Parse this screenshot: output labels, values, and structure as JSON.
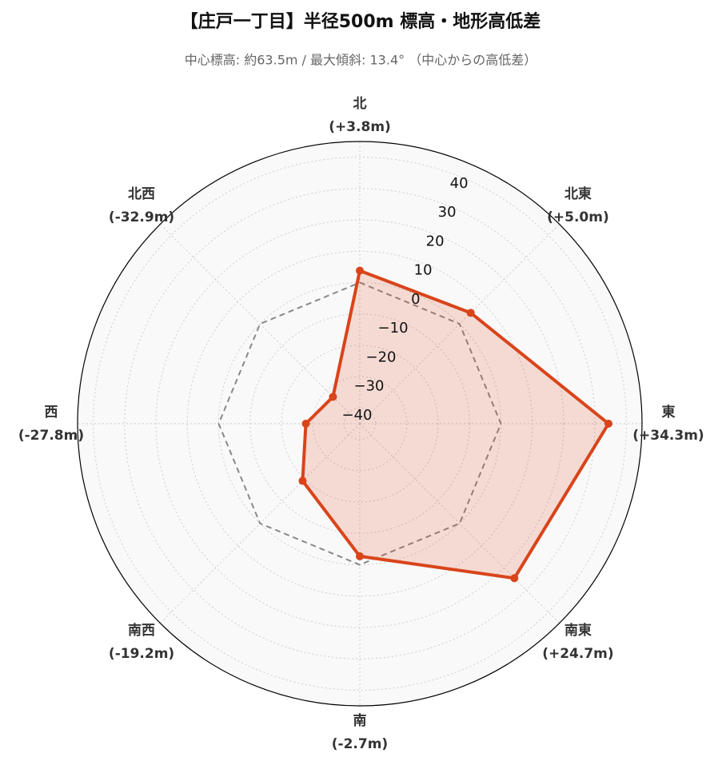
{
  "chart_data": {
    "type": "radar",
    "title": "【庄戸一丁目】半径500m 標高・地形高低差",
    "subtitle": "中心標高: 約63.5m / 最大傾斜: 13.4° （中心からの高低差）",
    "categories": [
      "北",
      "北東",
      "東",
      "南東",
      "南",
      "南西",
      "西",
      "北西"
    ],
    "series": [
      {
        "color": "#d9441a",
        "values": [
          3.8,
          5.0,
          34.3,
          24.7,
          -2.7,
          -19.2,
          -27.8,
          -32.9
        ],
        "value_labels": [
          "(+3.8m)",
          "(+5.0m)",
          "(+34.3m)",
          "(+24.7m)",
          "(-2.7m)",
          "(-19.2m)",
          "(-27.8m)",
          "(-32.9m)"
        ]
      }
    ],
    "reference": 0,
    "ylim": [
      -45,
      45
    ],
    "yticks": [
      {
        "value": -40,
        "label": "−40"
      },
      {
        "value": -30,
        "label": "−30"
      },
      {
        "value": -20,
        "label": "−20"
      },
      {
        "value": -10,
        "label": "−10"
      },
      0,
      10,
      20,
      30,
      40
    ],
    "grid": true
  }
}
